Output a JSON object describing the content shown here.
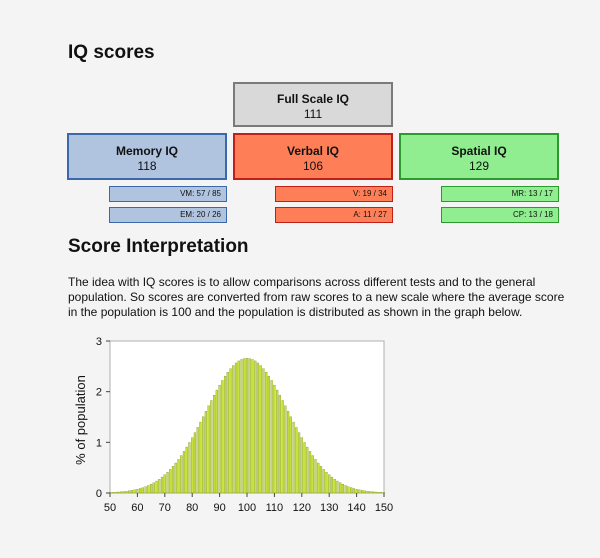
{
  "title": "IQ scores",
  "boxes": {
    "full": {
      "label": "Full Scale IQ",
      "value": "111",
      "fill": "#d9d9d9",
      "border": "#7a7a7a"
    },
    "memory": {
      "label": "Memory IQ",
      "value": "118",
      "fill": "#b0c3df",
      "border": "#3a68a8"
    },
    "verbal": {
      "label": "Verbal IQ",
      "value": "106",
      "fill": "#fe7f57",
      "border": "#c02018"
    },
    "spatial": {
      "label": "Spatial IQ",
      "value": "129",
      "fill": "#90ee90",
      "border": "#2d9a2d"
    }
  },
  "subscores": {
    "memory": [
      "VM: 57 / 85",
      "EM: 20 / 26"
    ],
    "verbal": [
      "V: 19 / 34",
      "A: 11 / 27"
    ],
    "spatial": [
      "MR: 13 / 17",
      "CP: 13 / 18"
    ]
  },
  "interpretation": {
    "heading": "Score Interpretation",
    "text": "The idea with IQ scores is to allow comparisons across different tests and to the general population. So scores are converted from raw scores to a new scale where the average score in the population is 100 and the population is distributed as shown in the graph below."
  },
  "chart_data": {
    "type": "bar",
    "ylabel": "%  of  population",
    "xlabel": "",
    "x_ticks": [
      50,
      60,
      70,
      80,
      90,
      100,
      110,
      120,
      130,
      140,
      150
    ],
    "y_ticks": [
      0,
      1,
      2,
      3
    ],
    "xlim": [
      50,
      150
    ],
    "ylim": [
      0,
      3
    ],
    "distribution": {
      "mean": 100,
      "sd": 15,
      "x_start": 50,
      "x_end": 150,
      "step": 1
    },
    "bar_color": "#c8e040",
    "bar_edge_color": "#6f8a10",
    "grid": false
  }
}
